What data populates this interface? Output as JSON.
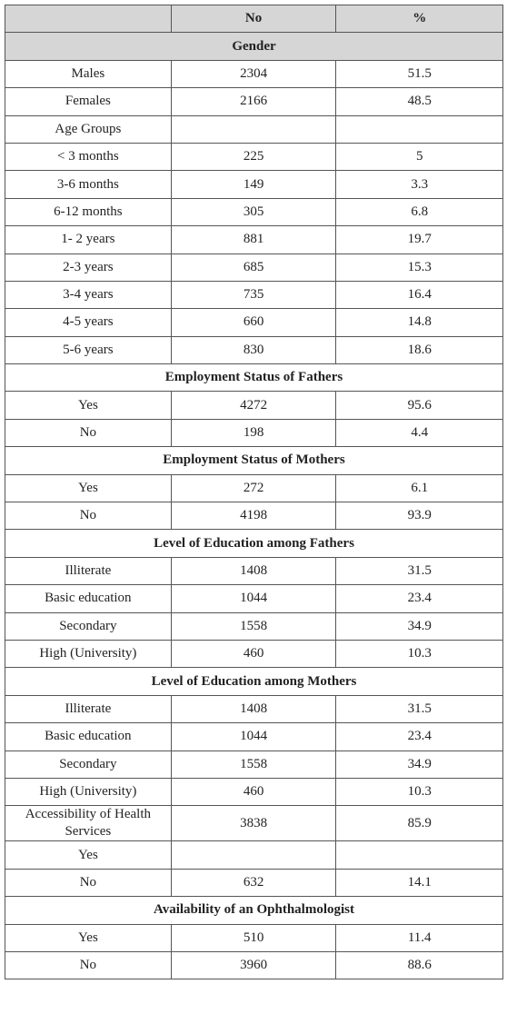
{
  "table": {
    "header": {
      "no": "No",
      "pct": "%"
    },
    "rows": [
      {
        "section": "Gender"
      },
      {
        "label": "Males",
        "no": 2304,
        "pct": 51.5
      },
      {
        "label": "Females",
        "no": 2166,
        "pct": 48.5
      },
      {
        "label": "Age Groups"
      },
      {
        "label": "< 3 months",
        "no": 225,
        "pct": 5
      },
      {
        "label": "3-6 months",
        "no": 149,
        "pct": 3.3
      },
      {
        "label": "6-12 months",
        "no": 305,
        "pct": 6.8
      },
      {
        "label": "1- 2 years",
        "no": 881,
        "pct": 19.7
      },
      {
        "label": "2-3 years",
        "no": 685,
        "pct": 15.3
      },
      {
        "label": "3-4 years",
        "no": 735,
        "pct": 16.4
      },
      {
        "label": "4-5 years",
        "no": 660,
        "pct": 14.8
      },
      {
        "label": "5-6 years",
        "no": 830,
        "pct": 18.6
      },
      {
        "section": "Employment Status of Fathers"
      },
      {
        "label": "Yes",
        "no": 4272,
        "pct": 95.6
      },
      {
        "label": "No",
        "no": 198,
        "pct": 4.4
      },
      {
        "section": "Employment Status of Mothers"
      },
      {
        "label": "Yes",
        "no": 272,
        "pct": 6.1
      },
      {
        "label": "No",
        "no": 4198,
        "pct": 93.9
      },
      {
        "section": "Level of Education among Fathers"
      },
      {
        "label": "Illiterate",
        "no": 1408,
        "pct": 31.5
      },
      {
        "label": "Basic education",
        "no": 1044,
        "pct": 23.4
      },
      {
        "label": "Secondary",
        "no": 1558,
        "pct": 34.9
      },
      {
        "label": "High (University)",
        "no": 460,
        "pct": 10.3
      },
      {
        "section": "Level of Education among Mothers"
      },
      {
        "label": "Illiterate",
        "no": 1408,
        "pct": 31.5
      },
      {
        "label": "Basic education",
        "no": 1044,
        "pct": 23.4
      },
      {
        "label": "Secondary",
        "no": 1558,
        "pct": 34.9
      },
      {
        "label": "High (University)",
        "no": 460,
        "pct": 10.3
      },
      {
        "label": "Accessibility of Health Services",
        "no": 3838,
        "pct": 85.9
      },
      {
        "label": "Yes"
      },
      {
        "label": "No",
        "no": 632,
        "pct": 14.1
      },
      {
        "section": "Availability of an Ophthalmologist"
      },
      {
        "label": "Yes",
        "no": 510,
        "pct": 11.4
      },
      {
        "label": "No",
        "no": 3960,
        "pct": 88.6
      }
    ]
  }
}
